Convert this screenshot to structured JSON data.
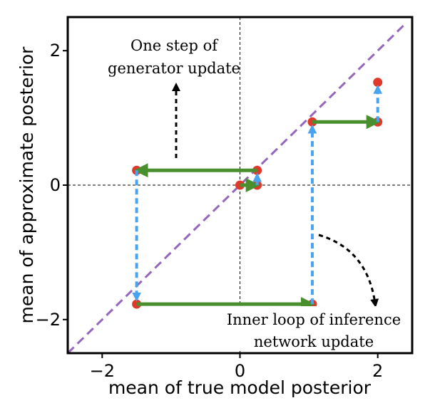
{
  "chart_data": {
    "type": "scatter",
    "xlabel": "mean of true model posterior",
    "ylabel": "mean of approximate posterior",
    "xlim": [
      -2.5,
      2.5
    ],
    "ylim": [
      -2.5,
      2.5
    ],
    "x_ticks": [
      -2,
      0,
      2
    ],
    "y_ticks": [
      -2,
      0,
      2
    ],
    "x_tick_labels": [
      "−2",
      "0",
      "2"
    ],
    "y_tick_labels": [
      "−2",
      "0",
      "2"
    ],
    "grid": false,
    "reference_lines": {
      "diagonal": {
        "from": [
          -2.5,
          -2.5
        ],
        "to": [
          2.4,
          2.4
        ],
        "color": "#9467bd",
        "style": "dashed"
      },
      "horizontal_zero": {
        "y": 0,
        "color": "#000000",
        "style": "dashed"
      },
      "vertical_zero": {
        "x": 0,
        "color": "#000000",
        "style": "dashed"
      }
    },
    "points": [
      {
        "x": 0,
        "y": 0
      },
      {
        "x": 0.25,
        "y": 0
      },
      {
        "x": 0.25,
        "y": 0.22
      },
      {
        "x": -1.5,
        "y": 0.22
      },
      {
        "x": -1.5,
        "y": -1.77
      },
      {
        "x": 1.05,
        "y": -1.77
      },
      {
        "x": 1.05,
        "y": 0.94
      },
      {
        "x": 2.0,
        "y": 0.94
      },
      {
        "x": 2.0,
        "y": 1.53
      }
    ],
    "point_color": "#e0392b",
    "inference_arrows": [
      {
        "from": [
          0,
          0
        ],
        "to": [
          0.25,
          0
        ]
      },
      {
        "from": [
          0.25,
          0.22
        ],
        "to": [
          -1.5,
          0.22
        ]
      },
      {
        "from": [
          -1.5,
          -1.77
        ],
        "to": [
          1.05,
          -1.77
        ]
      },
      {
        "from": [
          1.05,
          0.94
        ],
        "to": [
          2.0,
          0.94
        ]
      }
    ],
    "inference_arrow_color": "#4a8f2d",
    "generator_arrows": [
      {
        "from": [
          0.25,
          0
        ],
        "to": [
          0.25,
          0.22
        ]
      },
      {
        "from": [
          -1.5,
          0.22
        ],
        "to": [
          -1.5,
          -1.77
        ]
      },
      {
        "from": [
          1.05,
          -1.77
        ],
        "to": [
          1.05,
          0.94
        ]
      },
      {
        "from": [
          2.0,
          0.94
        ],
        "to": [
          2.0,
          1.53
        ]
      }
    ],
    "generator_arrow_color": "#4aa3ef",
    "annotations": [
      {
        "line1": "One step of",
        "line2": "generator update"
      },
      {
        "line1": "Inner loop of inference",
        "line2": "network update"
      }
    ]
  }
}
